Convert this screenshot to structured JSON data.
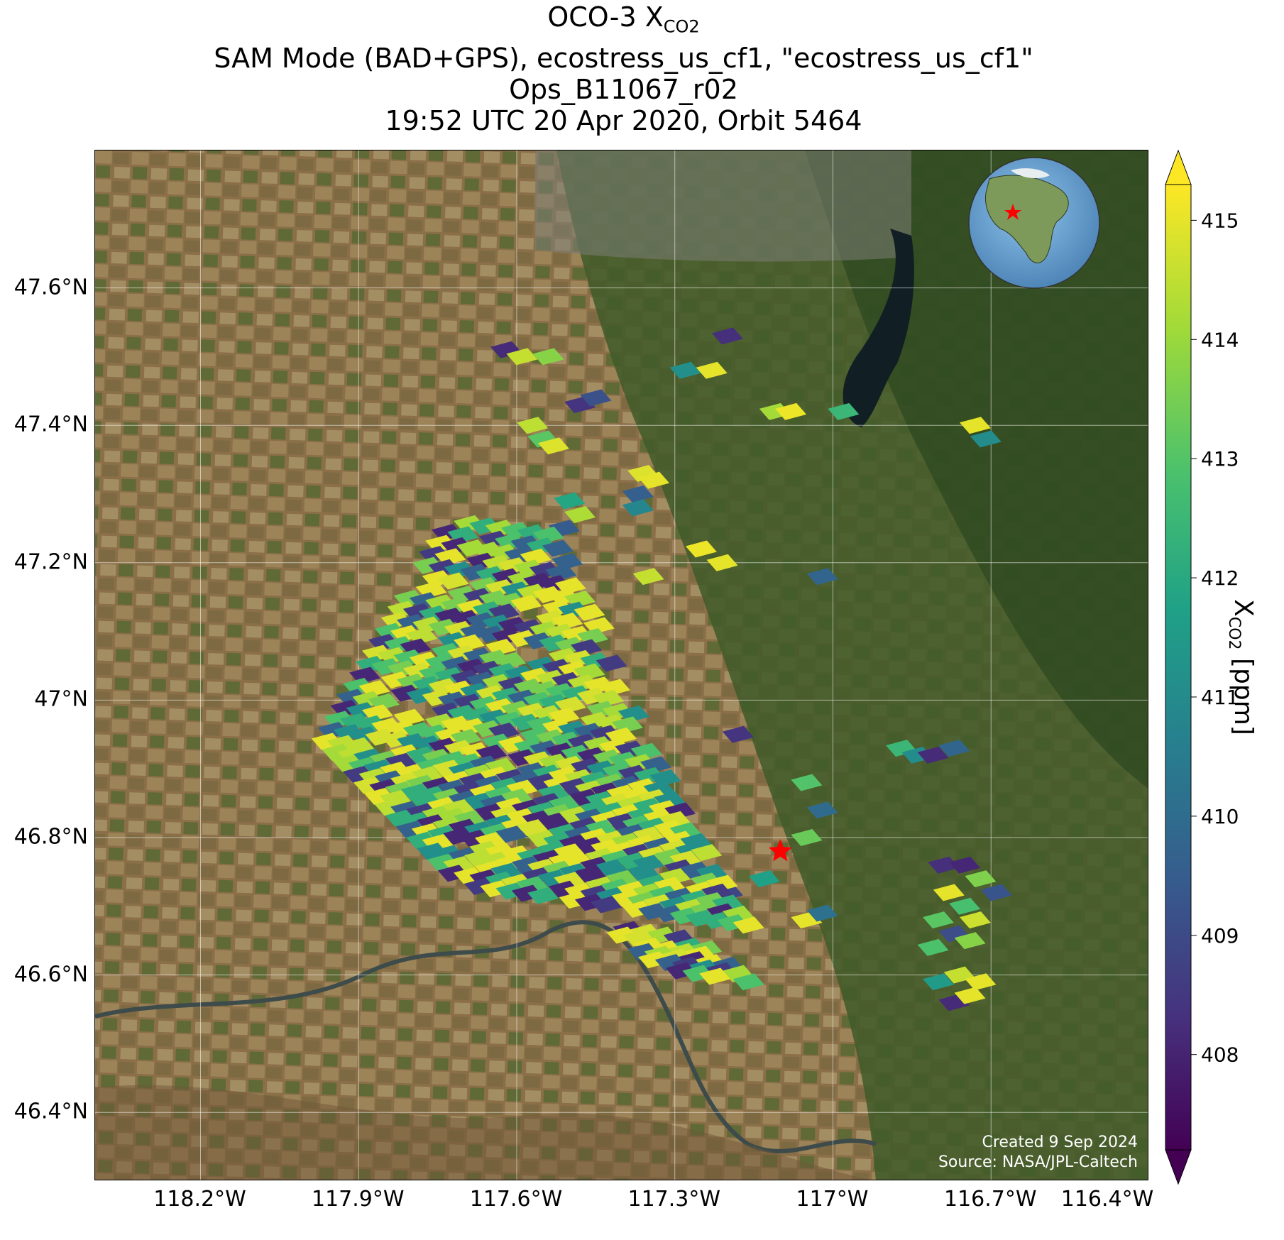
{
  "title": {
    "line1_prefix": "OCO-3 X",
    "line1_sub": "CO2",
    "line2": "SAM Mode (BAD+GPS), ecostress_us_cf1, \"ecostress_us_cf1\"",
    "line3": "Ops_B11067_r02",
    "line4": "19:52 UTC 20 Apr 2020, Orbit 5464"
  },
  "map": {
    "lon_range": [
      -118.4,
      -116.4
    ],
    "lat_range": [
      46.3,
      47.8
    ],
    "lat_ticks": [
      "47.6°N",
      "47.4°N",
      "47.2°N",
      "47°N",
      "46.8°N",
      "46.6°N",
      "46.4°N"
    ],
    "lon_ticks": [
      "118.2°W",
      "117.9°W",
      "117.6°W",
      "117.3°W",
      "117°W",
      "116.7°W",
      "116.4°W"
    ],
    "target": {
      "lon": -117.1,
      "lat": 46.78,
      "color": "#ff0000"
    },
    "gridlines": true,
    "credits": {
      "created": "Created 9 Sep 2024",
      "source": "Source: NASA/JPL-Caltech"
    },
    "inset_globe": {
      "placement": "top-right",
      "center": "North America"
    }
  },
  "colorbar": {
    "label_prefix": "X",
    "label_sub": "CO2",
    "label_suffix": " [ppm]",
    "ticks": [
      "408",
      "409",
      "410",
      "411",
      "412",
      "413",
      "414",
      "415"
    ],
    "range": [
      407.2,
      415.3
    ],
    "colormap": "viridis",
    "extend": "both"
  },
  "chart_data": {
    "type": "scatter",
    "description_units": "lon, lat, xco2 ppm",
    "soundings": [
      [
        -117.62,
        47.51,
        408.2
      ],
      [
        -117.59,
        47.5,
        414.6
      ],
      [
        -117.54,
        47.5,
        413.8
      ],
      [
        -117.48,
        47.43,
        408.4
      ],
      [
        -117.45,
        47.44,
        409.2
      ],
      [
        -117.57,
        47.4,
        414.5
      ],
      [
        -117.55,
        47.38,
        413.2
      ],
      [
        -117.53,
        47.37,
        414.9
      ],
      [
        -117.28,
        47.48,
        411.2
      ],
      [
        -117.2,
        47.53,
        408.3
      ],
      [
        -117.23,
        47.48,
        415.0
      ],
      [
        -117.11,
        47.42,
        414.2
      ],
      [
        -117.08,
        47.42,
        415.1
      ],
      [
        -116.98,
        47.42,
        412.6
      ],
      [
        -116.73,
        47.4,
        415.0
      ],
      [
        -116.71,
        47.38,
        411.1
      ],
      [
        -117.36,
        47.33,
        414.9
      ],
      [
        -117.34,
        47.32,
        415.0
      ],
      [
        -117.37,
        47.3,
        409.6
      ],
      [
        -117.5,
        47.29,
        412.0
      ],
      [
        -117.48,
        47.27,
        414.3
      ],
      [
        -117.51,
        47.25,
        409.5
      ],
      [
        -117.37,
        47.28,
        410.9
      ],
      [
        -117.25,
        47.22,
        415.1
      ],
      [
        -117.21,
        47.2,
        415.0
      ],
      [
        -117.35,
        47.18,
        414.6
      ],
      [
        -117.02,
        47.18,
        409.8
      ],
      [
        -116.87,
        46.93,
        412.6
      ],
      [
        -116.84,
        46.92,
        411.1
      ],
      [
        -116.81,
        46.92,
        408.2
      ],
      [
        -116.77,
        46.93,
        409.8
      ],
      [
        -117.05,
        46.88,
        413.1
      ],
      [
        -117.02,
        46.84,
        410.0
      ],
      [
        -117.05,
        46.8,
        413.4
      ],
      [
        -117.18,
        46.95,
        408.4
      ],
      [
        -117.13,
        46.74,
        411.8
      ],
      [
        -117.2,
        46.72,
        408.9
      ],
      [
        -117.05,
        46.68,
        415.0
      ],
      [
        -117.02,
        46.69,
        410.2
      ],
      [
        -116.79,
        46.76,
        408.3
      ],
      [
        -116.75,
        46.76,
        408.1
      ],
      [
        -116.72,
        46.74,
        413.7
      ],
      [
        -116.69,
        46.72,
        409.3
      ],
      [
        -116.78,
        46.72,
        415.0
      ],
      [
        -116.75,
        46.7,
        412.9
      ],
      [
        -116.73,
        46.68,
        414.7
      ],
      [
        -116.8,
        46.68,
        413.2
      ],
      [
        -116.77,
        46.66,
        409.1
      ],
      [
        -116.74,
        46.65,
        413.8
      ],
      [
        -116.81,
        46.64,
        413.0
      ],
      [
        -116.76,
        46.6,
        414.6
      ],
      [
        -116.72,
        46.59,
        415.0
      ],
      [
        -116.8,
        46.59,
        411.6
      ],
      [
        -116.77,
        46.56,
        408.2
      ],
      [
        -116.74,
        46.57,
        415.0
      ]
    ]
  }
}
